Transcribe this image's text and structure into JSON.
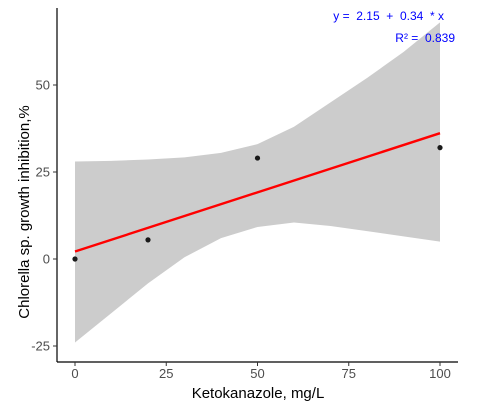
{
  "chart_data": {
    "type": "scatter",
    "xlabel": "Ketokanazole, mg/L",
    "ylabel": "Chlorella sp. growth inhibition,%",
    "xlim": [
      -4,
      104
    ],
    "ylim": [
      -28,
      70
    ],
    "x_ticks": [
      0,
      25,
      50,
      75,
      100
    ],
    "y_ticks": [
      -25,
      0,
      25,
      50
    ],
    "x_tick_labels": [
      "0",
      "25",
      "50",
      "75",
      "100"
    ],
    "y_tick_labels": [
      "-25",
      "0",
      "25",
      "50"
    ],
    "grid": false,
    "points": [
      {
        "x": 0,
        "y": 0
      },
      {
        "x": 20,
        "y": 5.5
      },
      {
        "x": 50,
        "y": 29
      },
      {
        "x": 100,
        "y": 32
      }
    ],
    "fit": {
      "intercept": 2.15,
      "slope": 0.34,
      "x_range": [
        0,
        100
      ],
      "ci_band": {
        "x": [
          0,
          10,
          20,
          30,
          40,
          50,
          60,
          70,
          80,
          90,
          100
        ],
        "lower": [
          -24,
          -15.5,
          -7,
          0.5,
          6,
          9.2,
          10.5,
          9.5,
          8,
          6.5,
          5
        ],
        "upper": [
          28,
          28.2,
          28.6,
          29.2,
          30.5,
          33,
          38,
          45,
          52,
          59.5,
          68
        ]
      }
    },
    "annotations": {
      "equation": "y =  2.15  +  0.34  * x",
      "r_squared": "R² =  0.839"
    },
    "colors": {
      "points": "#1a1a1a",
      "fit_line": "#ff0000",
      "ci_band": "#cccccc",
      "annotation": "#0000ff",
      "axis": "#000000"
    }
  }
}
